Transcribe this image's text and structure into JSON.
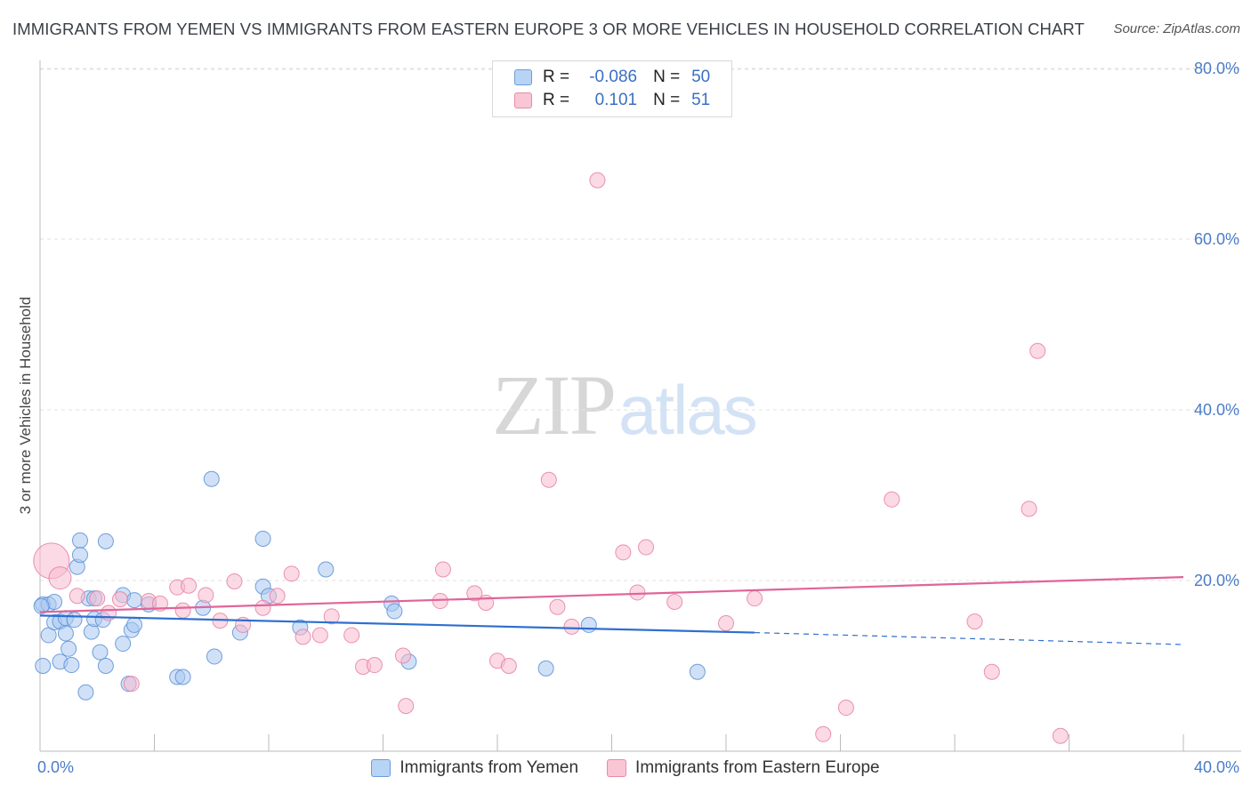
{
  "header": {
    "title": "IMMIGRANTS FROM YEMEN VS IMMIGRANTS FROM EASTERN EUROPE 3 OR MORE VEHICLES IN HOUSEHOLD CORRELATION CHART",
    "source": "Source: ZipAtlas.com"
  },
  "watermark": {
    "zip": "ZIP",
    "atlas": "atlas"
  },
  "legend_top": {
    "rows": [
      {
        "r_label": "R =",
        "r_value": "-0.086",
        "n_label": "N =",
        "n_value": "50"
      },
      {
        "r_label": "R =",
        "r_value": "0.101",
        "n_label": "N =",
        "n_value": "51"
      }
    ]
  },
  "colors": {
    "yemen_fill": "#a9c9f0",
    "yemen_stroke": "#5b8fd6",
    "yemen_line": "#2f6fcf",
    "ee_fill": "#f7bcd0",
    "ee_stroke": "#e87fa2",
    "ee_line": "#e0649a",
    "grid": "#e2e2e2",
    "axis": "#bbbbbb",
    "tick_text": "#4a7cc7"
  },
  "chart_data": {
    "type": "scatter",
    "title": "IMMIGRANTS FROM YEMEN VS IMMIGRANTS FROM EASTERN EUROPE 3 OR MORE VEHICLES IN HOUSEHOLD CORRELATION CHART",
    "xlabel": "",
    "ylabel": "3 or more Vehicles in Household",
    "xlim": [
      0,
      40
    ],
    "ylim": [
      0,
      82
    ],
    "x_tick_labels": [
      "0.0%",
      "40.0%"
    ],
    "y_ticks": [
      20,
      40,
      60,
      80
    ],
    "y_tick_labels": [
      "20.0%",
      "40.0%",
      "60.0%",
      "80.0%"
    ],
    "legend_position": "bottom-center",
    "series": [
      {
        "name": "Immigrants from Yemen",
        "r": -0.086,
        "n": 50,
        "trend": {
          "x0": 0,
          "y0": 15.9,
          "x1": 25,
          "y1": 13.9,
          "dash_to_x": 40,
          "dash_to_y": 12.5
        },
        "points": [
          [
            0.1,
            17.2
          ],
          [
            0.3,
            17.2
          ],
          [
            0.5,
            17.5
          ],
          [
            0.1,
            10
          ],
          [
            0.3,
            13.6
          ],
          [
            0.5,
            15.1
          ],
          [
            0.7,
            15.2
          ],
          [
            0.9,
            15.6
          ],
          [
            0.7,
            10.5
          ],
          [
            0.9,
            13.8
          ],
          [
            1.0,
            12
          ],
          [
            1.1,
            10.1
          ],
          [
            1.2,
            15.4
          ],
          [
            1.3,
            21.6
          ],
          [
            1.4,
            24.7
          ],
          [
            1.4,
            23
          ],
          [
            1.6,
            6.9
          ],
          [
            1.7,
            17.9
          ],
          [
            1.8,
            14
          ],
          [
            1.9,
            15.5
          ],
          [
            1.9,
            17.9
          ],
          [
            2.1,
            11.6
          ],
          [
            2.2,
            15.4
          ],
          [
            2.3,
            10
          ],
          [
            2.3,
            24.6
          ],
          [
            2.9,
            12.6
          ],
          [
            2.9,
            18.3
          ],
          [
            3.1,
            7.9
          ],
          [
            3.2,
            14.2
          ],
          [
            3.3,
            17.7
          ],
          [
            3.3,
            14.8
          ],
          [
            3.8,
            17.2
          ],
          [
            4.8,
            8.7
          ],
          [
            5.0,
            8.7
          ],
          [
            5.7,
            16.8
          ],
          [
            6.0,
            31.9
          ],
          [
            6.1,
            11.1
          ],
          [
            7.0,
            13.9
          ],
          [
            7.8,
            24.9
          ],
          [
            7.8,
            19.3
          ],
          [
            8.0,
            18.2
          ],
          [
            9.1,
            14.5
          ],
          [
            10.0,
            21.3
          ],
          [
            12.3,
            17.3
          ],
          [
            12.4,
            16.4
          ],
          [
            12.9,
            10.5
          ],
          [
            17.7,
            9.7
          ],
          [
            19.2,
            14.8
          ],
          [
            23.0,
            9.3
          ],
          [
            0.05,
            17.0
          ]
        ]
      },
      {
        "name": "Immigrants from Eastern Europe",
        "r": 0.101,
        "n": 51,
        "trend": {
          "x0": 0,
          "y0": 16.3,
          "x1": 40,
          "y1": 20.4
        },
        "points": [
          [
            0.4,
            22.3
          ],
          [
            0.7,
            20.3
          ],
          [
            1.3,
            18.2
          ],
          [
            2.0,
            17.9
          ],
          [
            2.4,
            16.2
          ],
          [
            2.8,
            17.8
          ],
          [
            3.2,
            7.9
          ],
          [
            3.8,
            17.6
          ],
          [
            4.2,
            17.3
          ],
          [
            4.8,
            19.2
          ],
          [
            5.2,
            19.4
          ],
          [
            5.8,
            18.3
          ],
          [
            6.3,
            15.3
          ],
          [
            6.8,
            19.9
          ],
          [
            7.1,
            14.8
          ],
          [
            7.8,
            16.8
          ],
          [
            8.3,
            18.2
          ],
          [
            8.8,
            20.8
          ],
          [
            9.2,
            13.4
          ],
          [
            9.8,
            13.6
          ],
          [
            10.2,
            15.8
          ],
          [
            10.9,
            13.6
          ],
          [
            11.3,
            9.9
          ],
          [
            11.7,
            10.1
          ],
          [
            12.7,
            11.2
          ],
          [
            12.8,
            5.3
          ],
          [
            14.0,
            17.6
          ],
          [
            14.1,
            21.3
          ],
          [
            15.2,
            18.5
          ],
          [
            15.6,
            17.4
          ],
          [
            16.0,
            10.6
          ],
          [
            16.4,
            10
          ],
          [
            17.8,
            31.8
          ],
          [
            18.1,
            16.9
          ],
          [
            18.6,
            14.6
          ],
          [
            19.5,
            66.9
          ],
          [
            20.4,
            23.3
          ],
          [
            20.9,
            18.6
          ],
          [
            21.2,
            23.9
          ],
          [
            22.2,
            17.5
          ],
          [
            24.0,
            15
          ],
          [
            25.0,
            17.9
          ],
          [
            27.4,
            2
          ],
          [
            28.2,
            5.1
          ],
          [
            29.8,
            29.5
          ],
          [
            32.7,
            15.2
          ],
          [
            33.3,
            9.3
          ],
          [
            34.6,
            28.4
          ],
          [
            34.9,
            46.9
          ],
          [
            35.7,
            1.8
          ],
          [
            5.0,
            16.5
          ]
        ]
      }
    ]
  },
  "legend_bottom": {
    "items": [
      {
        "label": "Immigrants from Yemen"
      },
      {
        "label": "Immigrants from Eastern Europe"
      }
    ]
  }
}
